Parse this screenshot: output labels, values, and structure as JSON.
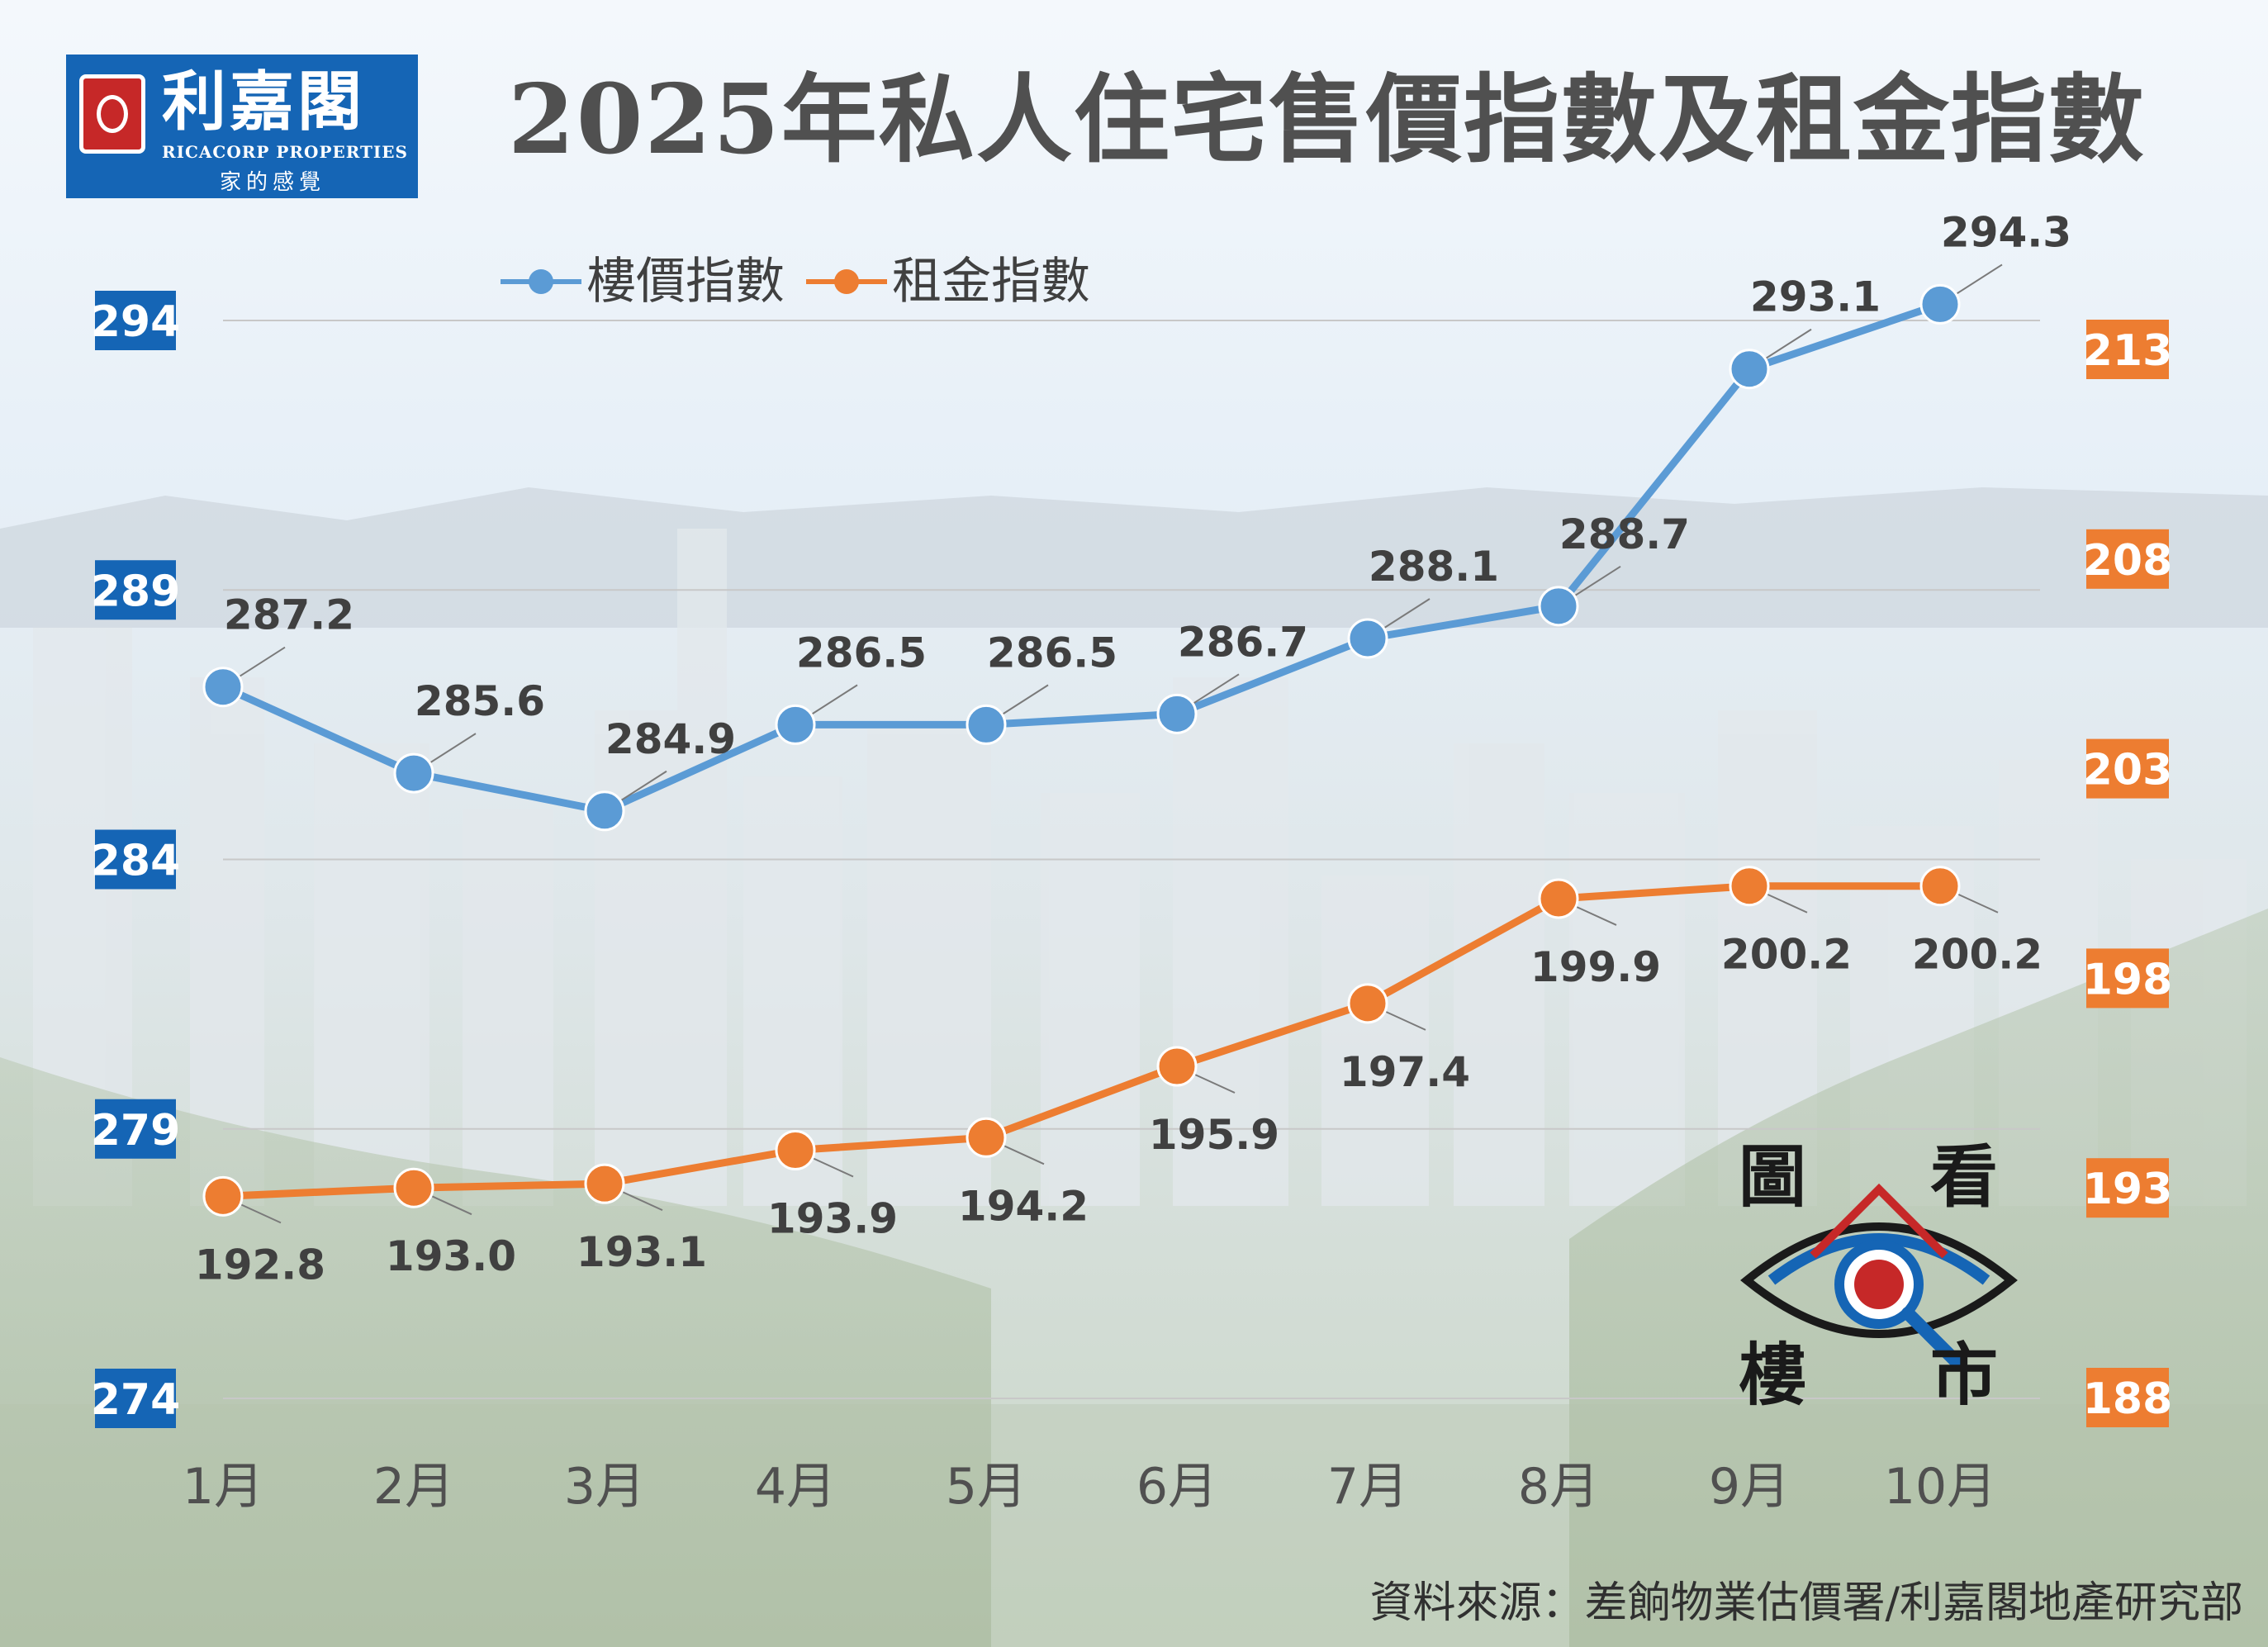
{
  "header": {
    "title": "2025年私人住宅售價指數及租金指數"
  },
  "logo": {
    "name_cn": "利嘉閣",
    "name_en": "RICACORP PROPERTIES",
    "slogan": "家的感覺"
  },
  "watermark": {
    "chars": [
      "圖",
      "看",
      "樓",
      "市"
    ]
  },
  "source": "資料來源：差餉物業估價署/利嘉閣地產研究部",
  "colors": {
    "price": "#5b9bd5",
    "rent": "#ed7d31",
    "price_axis_bg": "#1565b5",
    "rent_axis_bg": "#ed7d31"
  },
  "chart_data": {
    "type": "line",
    "title": "2025年私人住宅售價指數及租金指數",
    "categories": [
      "1月",
      "2月",
      "3月",
      "4月",
      "5月",
      "6月",
      "7月",
      "8月",
      "9月",
      "10月"
    ],
    "legend_position": "top-left",
    "grid": true,
    "series": [
      {
        "name": "樓價指數",
        "axis": "left",
        "values": [
          287.2,
          285.6,
          284.9,
          286.5,
          286.5,
          286.7,
          288.1,
          288.7,
          293.1,
          294.3
        ],
        "labels": [
          "287.2",
          "285.6",
          "284.9",
          "286.5",
          "286.5",
          "286.7",
          "288.1",
          "288.7",
          "293.1",
          "294.3"
        ]
      },
      {
        "name": "租金指數",
        "axis": "right",
        "values": [
          192.8,
          193.0,
          193.1,
          193.9,
          194.2,
          195.9,
          197.4,
          199.9,
          200.2,
          200.2
        ],
        "labels": [
          "192.8",
          "193.0",
          "193.1",
          "193.9",
          "194.2",
          "195.9",
          "197.4",
          "199.9",
          "200.2",
          "200.2"
        ]
      }
    ],
    "y_left": {
      "range": [
        274,
        294
      ],
      "ticks": [
        "294",
        "289",
        "284",
        "279",
        "274"
      ],
      "tick_values": [
        294,
        289,
        284,
        279,
        274
      ]
    },
    "y_right": {
      "range": [
        188,
        213
      ],
      "ticks": [
        "213",
        "208",
        "203",
        "198",
        "193",
        "188"
      ],
      "tick_values": [
        213,
        208,
        203,
        198,
        193,
        188
      ]
    }
  }
}
